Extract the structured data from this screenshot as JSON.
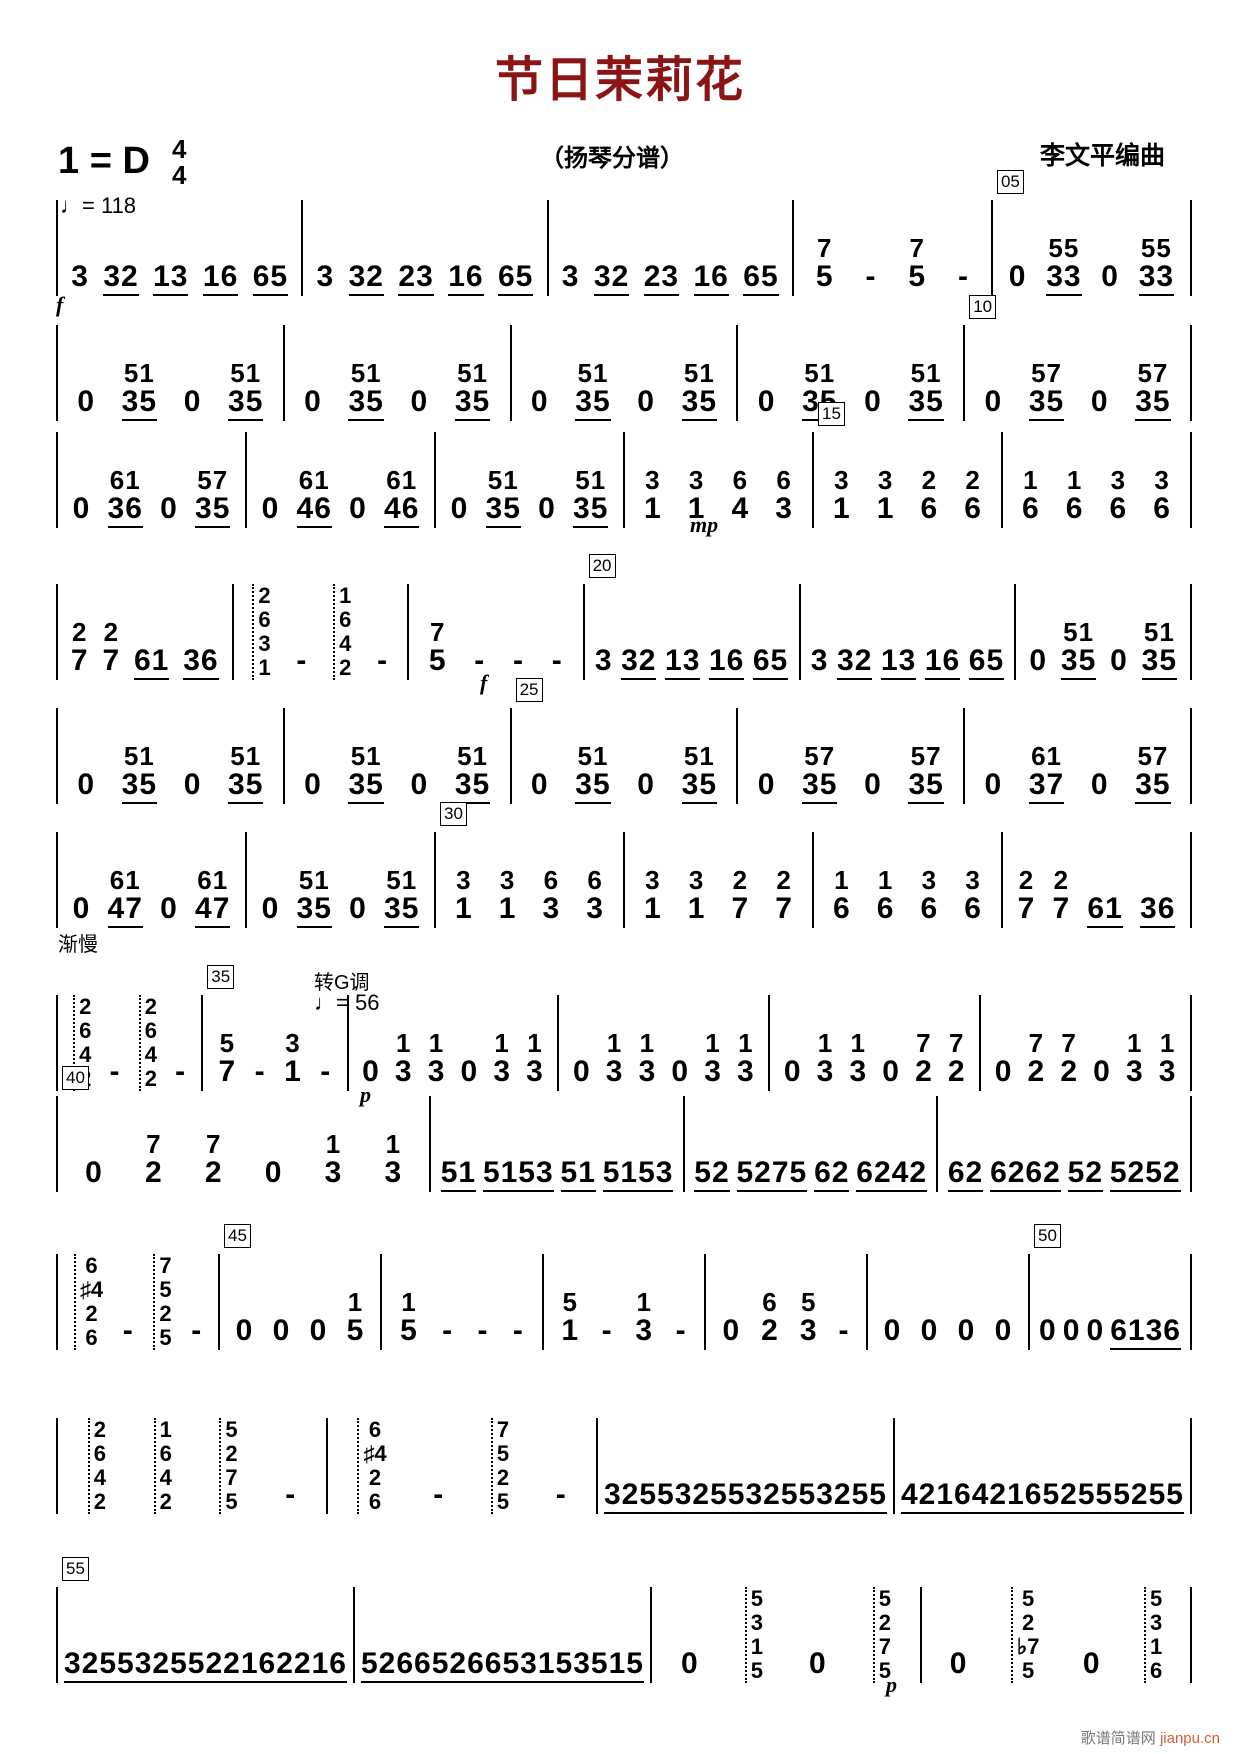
{
  "header": {
    "title": "节日茉莉花",
    "key": "1 = D",
    "time_top": "4",
    "time_bottom": "4",
    "tempo": "♩= 118",
    "subtitle": "（扬琴分谱）",
    "composer": "李文平编曲"
  },
  "colors": {
    "title": "#8b1414"
  },
  "annotations": {
    "rit": "渐慢",
    "modulation": "转G调",
    "tempo2": "♩= 56",
    "dyn_f": "f",
    "dyn_mp": "mp",
    "dyn_p": "p"
  },
  "rows": [
    {
      "measures": [
        {
          "tokens": [
            "3",
            "32",
            "13",
            "16",
            "65"
          ]
        },
        {
          "tokens": [
            "3",
            "32",
            "23",
            "16",
            "65"
          ]
        },
        {
          "tokens": [
            "3",
            "32",
            "23",
            "16",
            "65"
          ]
        },
        {
          "tokens": [
            "7|5",
            "-",
            "7|5",
            "-"
          ]
        },
        {
          "num": "05",
          "tokens": [
            "0",
            "55|33",
            "0",
            "55|33"
          ]
        }
      ]
    },
    {
      "measures": [
        {
          "tokens": [
            "0",
            "51|35",
            "0",
            "51|35"
          ]
        },
        {
          "tokens": [
            "0",
            "51|35",
            "0",
            "51|35"
          ]
        },
        {
          "tokens": [
            "0",
            "51|35",
            "0",
            "51|35"
          ]
        },
        {
          "tokens": [
            "0",
            "51|35",
            "0",
            "51|35"
          ]
        },
        {
          "num": "10",
          "tokens": [
            "0",
            "57|35",
            "0",
            "57|35"
          ]
        }
      ]
    },
    {
      "measures": [
        {
          "tokens": [
            "0",
            "61|36",
            "0",
            "57|35"
          ]
        },
        {
          "tokens": [
            "0",
            "61|46",
            "0",
            "61|46"
          ]
        },
        {
          "tokens": [
            "0",
            "51|35",
            "0",
            "51|35"
          ]
        },
        {
          "tokens": [
            "3|1",
            "3|1",
            "6|4",
            "6|3"
          ]
        },
        {
          "num": "15",
          "tokens": [
            "3|1",
            "3|1",
            "2|6",
            "2|6"
          ]
        },
        {
          "tokens": [
            "1|6",
            "1|6",
            "3|6",
            "3|6"
          ]
        }
      ]
    },
    {
      "measures": [
        {
          "tokens": [
            "2|7",
            "2|7",
            "61",
            "36"
          ]
        },
        {
          "tokens": [
            "c:2631",
            "-",
            "c:1642",
            "-"
          ]
        },
        {
          "tokens": [
            "7|5",
            "-",
            "-",
            "-"
          ]
        },
        {
          "num": "20",
          "tokens": [
            "3",
            "32",
            "13",
            "16",
            "65"
          ]
        },
        {
          "tokens": [
            "3",
            "32",
            "13",
            "16",
            "65"
          ]
        },
        {
          "tokens": [
            "0",
            "51|35",
            "0",
            "51|35"
          ]
        }
      ]
    },
    {
      "measures": [
        {
          "tokens": [
            "0",
            "51|35",
            "0",
            "51|35"
          ]
        },
        {
          "tokens": [
            "0",
            "51|35",
            "0",
            "51|35"
          ]
        },
        {
          "num": "25",
          "tokens": [
            "0",
            "51|35",
            "0",
            "51|35"
          ]
        },
        {
          "tokens": [
            "0",
            "57|35",
            "0",
            "57|35"
          ]
        },
        {
          "tokens": [
            "0",
            "61|37",
            "0",
            "57|35"
          ]
        }
      ]
    },
    {
      "measures": [
        {
          "tokens": [
            "0",
            "61|47",
            "0",
            "61|47"
          ]
        },
        {
          "tokens": [
            "0",
            "51|35",
            "0",
            "51|35"
          ]
        },
        {
          "num": "30",
          "tokens": [
            "3|1",
            "3|1",
            "6|3",
            "6|3"
          ]
        },
        {
          "tokens": [
            "3|1",
            "3|1",
            "2|7",
            "2|7"
          ]
        },
        {
          "tokens": [
            "1|6",
            "1|6",
            "3|6",
            "3|6"
          ]
        },
        {
          "tokens": [
            "2|7",
            "2|7",
            "61",
            "36"
          ]
        }
      ]
    },
    {
      "measures": [
        {
          "tokens": [
            "c:2642",
            "-",
            "c:2642",
            "-"
          ]
        },
        {
          "num": "35",
          "tokens": [
            "5|7",
            "-",
            "3|1",
            "-"
          ]
        },
        {
          "tokens": [
            "0",
            "1|3",
            "1|3",
            "0",
            "1|3",
            "1|3"
          ]
        },
        {
          "tokens": [
            "0",
            "1|3",
            "1|3",
            "0",
            "1|3",
            "1|3"
          ]
        },
        {
          "tokens": [
            "0",
            "1|3",
            "1|3",
            "0",
            "7|2",
            "7|2"
          ]
        },
        {
          "tokens": [
            "0",
            "7|2",
            "7|2",
            "0",
            "1|3",
            "1|3"
          ]
        }
      ]
    },
    {
      "measures": [
        {
          "num": "40",
          "tokens": [
            "0",
            "7|2",
            "7|2",
            "0",
            "1|3",
            "1|3"
          ]
        },
        {
          "tokens": [
            "51",
            "5153",
            "51",
            "5153"
          ]
        },
        {
          "tokens": [
            "52",
            "5275",
            "62",
            "6242"
          ]
        },
        {
          "tokens": [
            "62",
            "6262",
            "52",
            "5252"
          ]
        }
      ]
    },
    {
      "measures": [
        {
          "tokens": [
            "c:6♯426",
            "-",
            "c:7525",
            "-"
          ]
        },
        {
          "num": "45",
          "tokens": [
            "0",
            "0",
            "0",
            "1|5"
          ]
        },
        {
          "tokens": [
            "1|5",
            "-",
            "-",
            "-"
          ]
        },
        {
          "tokens": [
            "5|1",
            "-",
            "1|3",
            "-"
          ]
        },
        {
          "tokens": [
            "0",
            "6|2",
            "5|3",
            "-"
          ]
        },
        {
          "tokens": [
            "0",
            "0",
            "0",
            "0"
          ]
        },
        {
          "num": "50",
          "tokens": [
            "0",
            "0",
            "0",
            "6136"
          ]
        }
      ]
    },
    {
      "measures": [
        {
          "tokens": [
            "c:2642",
            "c:1642",
            "c:5275",
            "-"
          ]
        },
        {
          "tokens": [
            "c:6♯426",
            "-",
            "c:7525",
            "-"
          ]
        },
        {
          "tokens": [
            "3255",
            "3255",
            "3255",
            "3255"
          ]
        },
        {
          "tokens": [
            "4216",
            "4216",
            "5255",
            "5255"
          ]
        }
      ]
    },
    {
      "measures": [
        {
          "num": "55",
          "tokens": [
            "3255",
            "3255",
            "2216",
            "2216"
          ]
        },
        {
          "tokens": [
            "5266",
            "5266",
            "5315",
            "3515"
          ]
        },
        {
          "tokens": [
            "0",
            "c:5315",
            "0",
            "c:5275"
          ]
        },
        {
          "tokens": [
            "0",
            "c:52♭75",
            "0",
            "c:5316"
          ]
        }
      ]
    }
  ],
  "watermark": {
    "cn": "歌谱简谱网",
    "url": "jianpu.cn"
  }
}
